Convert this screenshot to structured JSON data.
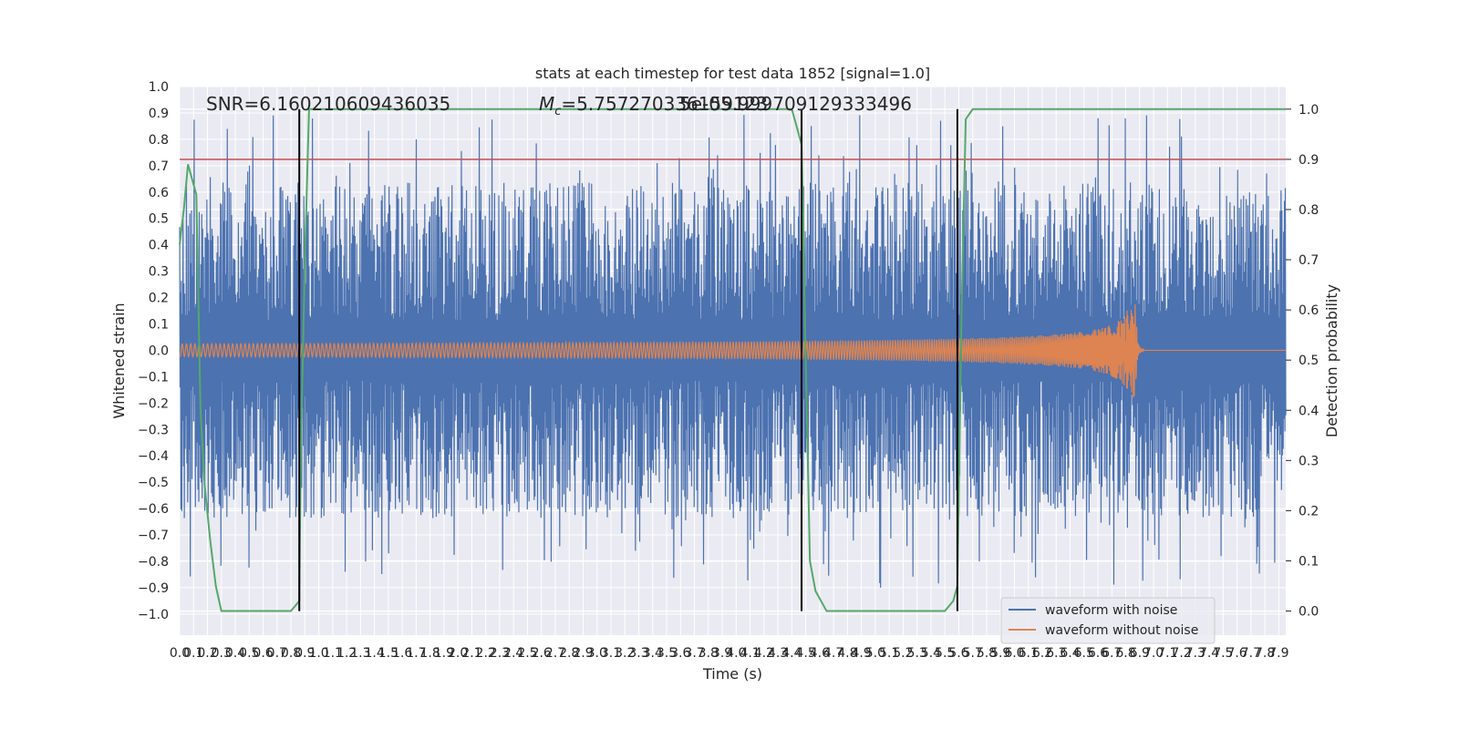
{
  "chart_data": {
    "type": "line",
    "title": "stats at each timestep for test data 1852 [signal=1.0]",
    "xlabel": "Time (s)",
    "ylabel_left": "Whitened strain",
    "ylabel_right": "Detection probability",
    "xlim": [
      0.0,
      7.95
    ],
    "ylim_left": [
      -1.08,
      1.0
    ],
    "ylim_right": [
      -0.048,
      1.045
    ],
    "grid": true,
    "x_ticks": [
      "0.0",
      "0.1",
      "0.2",
      "0.3",
      "0.4",
      "0.5",
      "0.6",
      "0.7",
      "0.8",
      "0.9",
      "1.0",
      "1.1",
      "1.2",
      "1.3",
      "1.4",
      "1.5",
      "1.6",
      "1.7",
      "1.8",
      "1.9",
      "2.0",
      "2.1",
      "2.2",
      "2.3",
      "2.4",
      "2.5",
      "2.6",
      "2.7",
      "2.8",
      "2.9",
      "3.0",
      "3.1",
      "3.2",
      "3.3",
      "3.4",
      "3.5",
      "3.6",
      "3.7",
      "3.8",
      "3.9",
      "4.0",
      "4.1",
      "4.2",
      "4.3",
      "4.4",
      "4.5",
      "4.6",
      "4.7",
      "4.8",
      "4.9",
      "5.0",
      "5.1",
      "5.2",
      "5.3",
      "5.4",
      "5.5",
      "5.6",
      "5.7",
      "5.8",
      "5.9",
      "6.0",
      "6.1",
      "6.2",
      "6.3",
      "6.4",
      "6.5",
      "6.6",
      "6.7",
      "6.8",
      "6.9",
      "7.0",
      "7.1",
      "7.2",
      "7.3",
      "7.4",
      "7.5",
      "7.6",
      "7.7",
      "7.8",
      "7.9"
    ],
    "y_ticks_left": [
      "1.0",
      "0.9",
      "0.8",
      "0.7",
      "0.6",
      "0.5",
      "0.4",
      "0.3",
      "0.2",
      "0.1",
      "0.0",
      "−0.1",
      "−0.2",
      "−0.3",
      "−0.4",
      "−0.5",
      "−0.6",
      "−0.7",
      "−0.8",
      "−0.9",
      "−1.0"
    ],
    "y_ticks_right": [
      "1.0",
      "0.9",
      "0.8",
      "0.7",
      "0.6",
      "0.5",
      "0.4",
      "0.3",
      "0.2",
      "0.1",
      "0.0"
    ],
    "annotations": {
      "snr": "SNR=6.160210609436035",
      "mc": "=5.757270336159123",
      "mc_symbol": "M",
      "mc_sub": "c",
      "extra": "5e-05.999709129333496"
    },
    "threshold": {
      "value": 0.9,
      "axis": "right",
      "color": "#c44e52"
    },
    "vertical_lines": [
      0.86,
      4.47,
      5.59
    ],
    "series": [
      {
        "name": "waveform with noise",
        "color": "#4c72b0",
        "kind": "noise",
        "amplitude": 0.95
      },
      {
        "name": "waveform without noise",
        "color": "#dd8452",
        "kind": "chirp",
        "merger_time": 6.88
      },
      {
        "name": "detection probability",
        "color": "#55a868",
        "axis": "right",
        "x": [
          0.0,
          0.03,
          0.06,
          0.09,
          0.12,
          0.15,
          0.18,
          0.22,
          0.26,
          0.3,
          0.4,
          0.6,
          0.8,
          0.86,
          0.87,
          0.9,
          0.93,
          1.0,
          2.0,
          3.0,
          4.0,
          4.4,
          4.47,
          4.5,
          4.53,
          4.57,
          4.65,
          4.75,
          5.0,
          5.3,
          5.5,
          5.56,
          5.59,
          5.62,
          5.65,
          5.7,
          6.0,
          7.0,
          7.95
        ],
        "values": [
          0.73,
          0.8,
          0.89,
          0.86,
          0.83,
          0.4,
          0.25,
          0.14,
          0.05,
          0.0,
          0.0,
          0.0,
          0.0,
          0.02,
          0.3,
          0.7,
          1.0,
          1.0,
          1.0,
          1.0,
          1.0,
          1.0,
          0.93,
          0.5,
          0.1,
          0.04,
          0.0,
          0.0,
          0.0,
          0.0,
          0.0,
          0.02,
          0.05,
          0.6,
          0.98,
          1.0,
          1.0,
          1.0,
          1.0
        ]
      }
    ],
    "legend_position": "lower-right"
  }
}
